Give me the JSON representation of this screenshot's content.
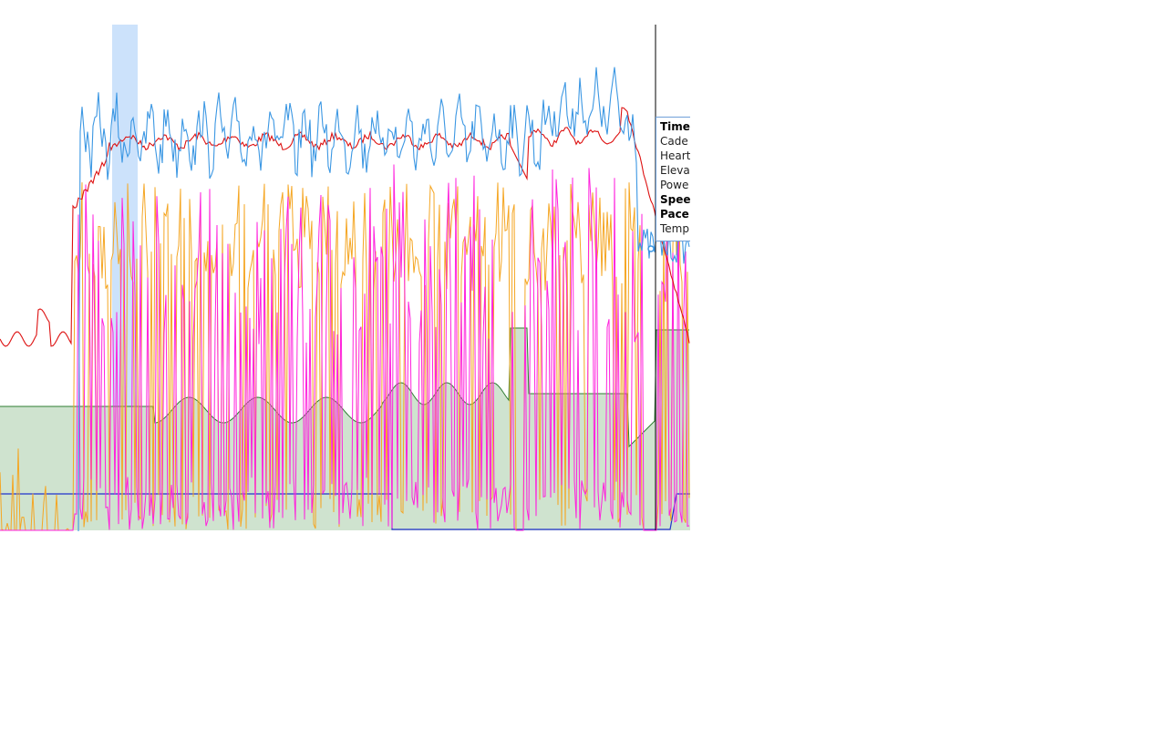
{
  "tooltip": {
    "rows": [
      {
        "label": "Time",
        "bold": true
      },
      {
        "label": "Cade",
        "bold": false
      },
      {
        "label": "Heart",
        "bold": false
      },
      {
        "label": "Eleva",
        "bold": false
      },
      {
        "label": "Powe",
        "bold": false
      },
      {
        "label": "Spee",
        "bold": true
      },
      {
        "label": "Pace",
        "bold": true
      },
      {
        "label": "Temp",
        "bold": false
      }
    ]
  },
  "colors": {
    "heart_rate": "#dd1111",
    "speed": "#3b97e3",
    "power": "#ff22dd",
    "cadence": "#f5a623",
    "elevation_fill": "#cfe3cf",
    "elevation_line": "#2e7d32",
    "temperature": "#2233cc",
    "highlight": "#cce2fb",
    "cursor": "#000000"
  }
}
